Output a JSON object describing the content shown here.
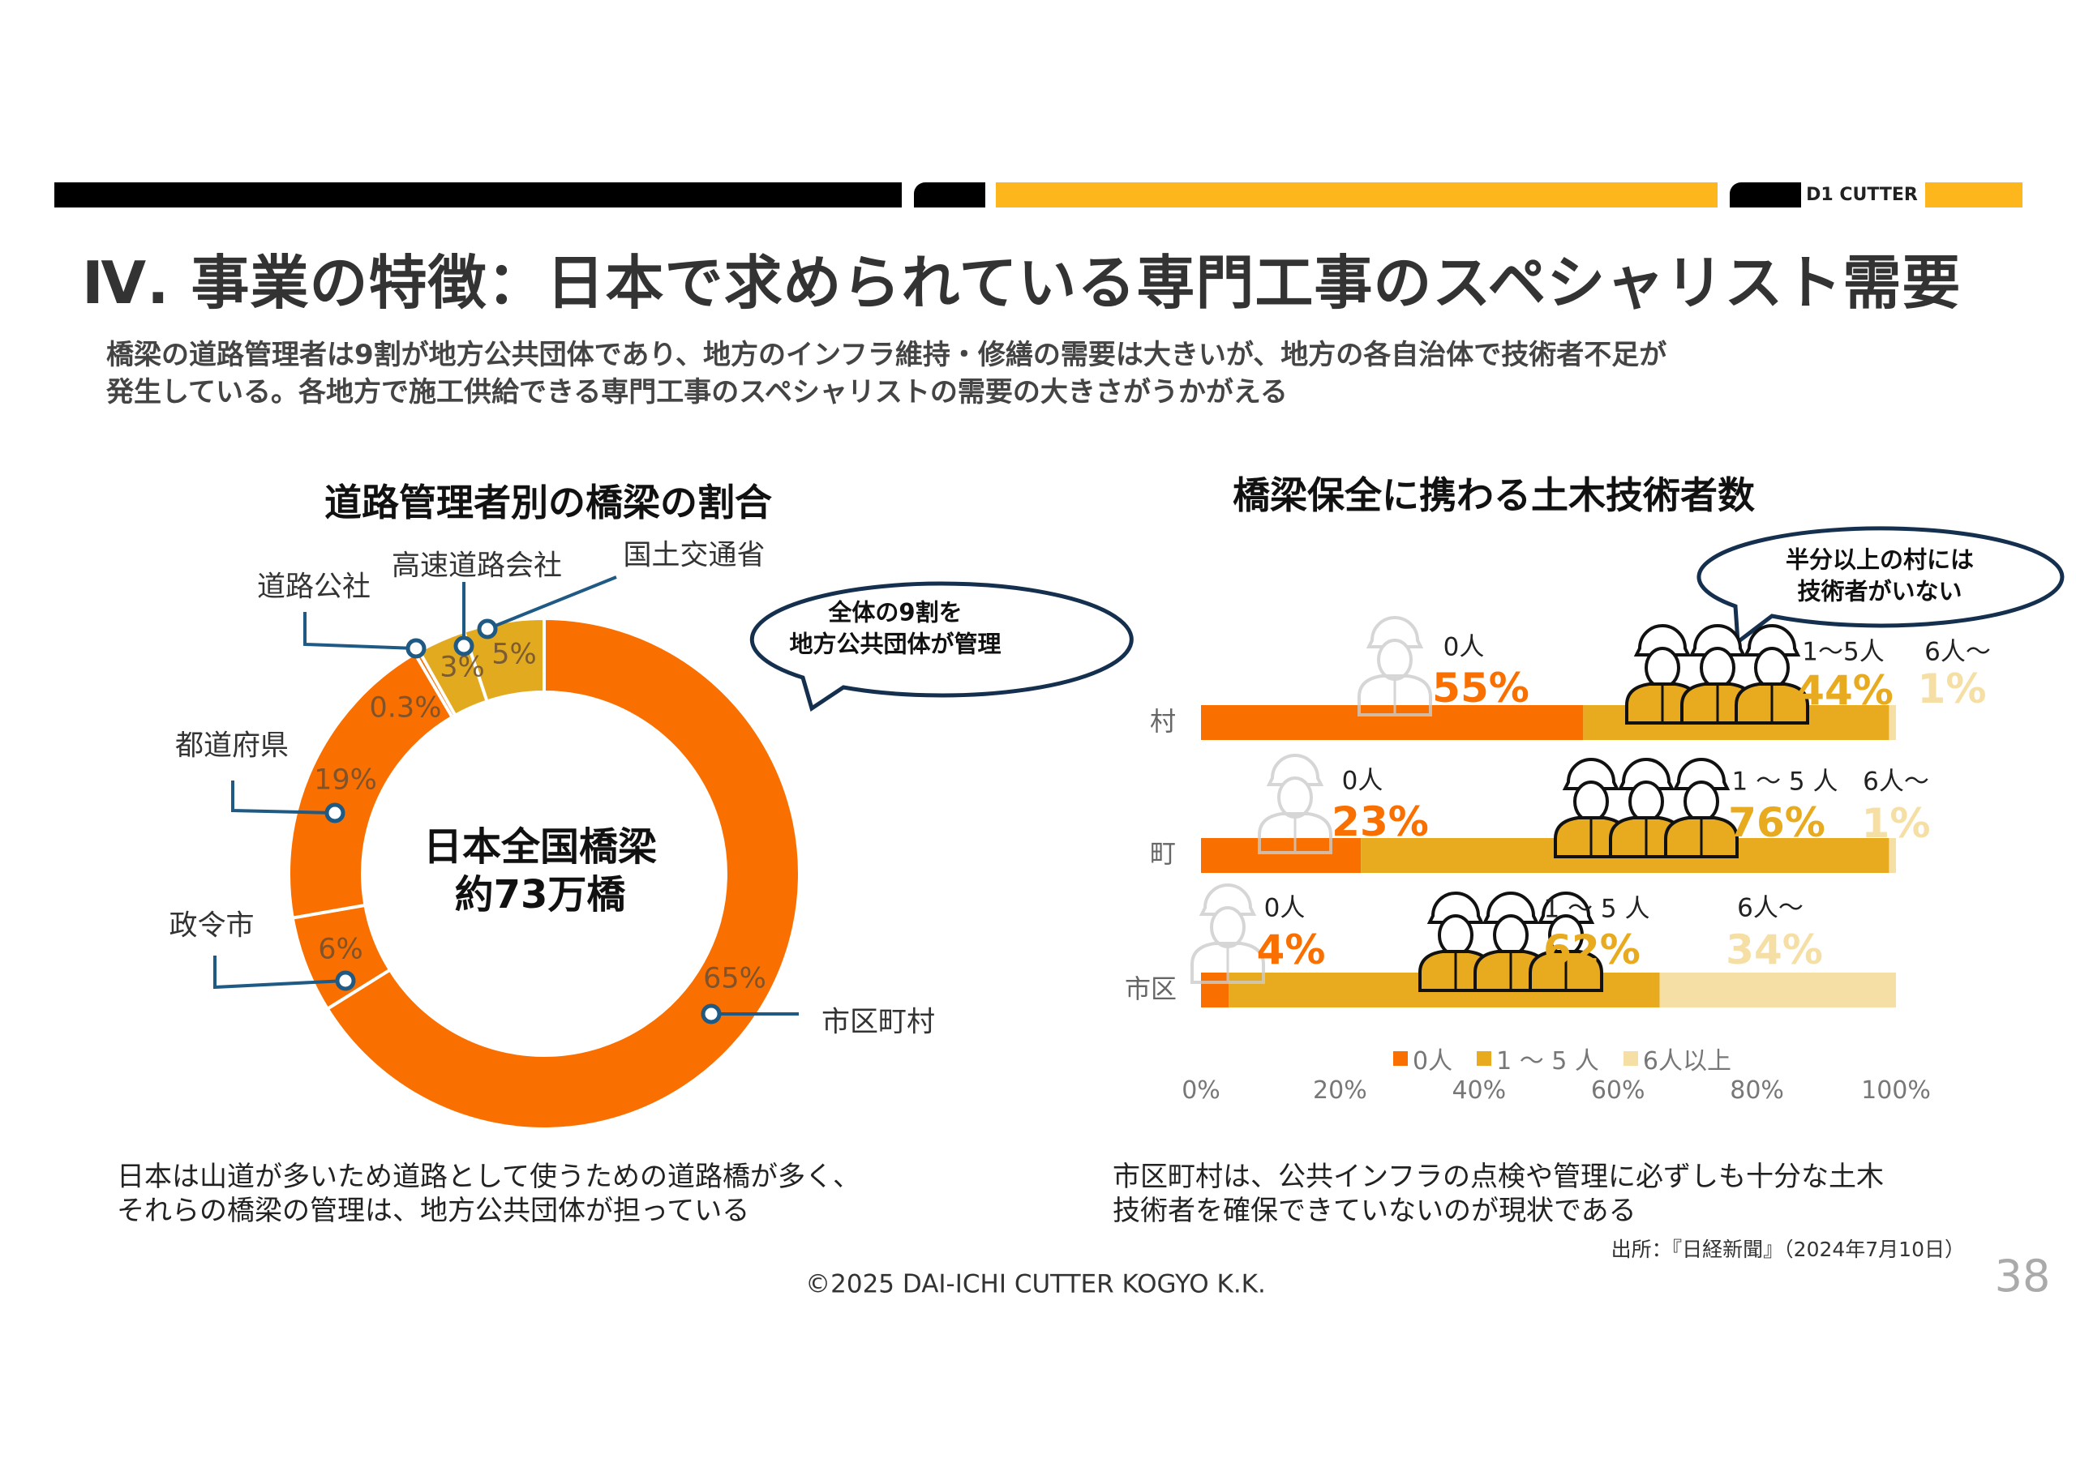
{
  "header": {
    "brand": "D1 CUTTER",
    "colors": {
      "black": "#000000",
      "yellow": "#FDB71C"
    }
  },
  "title": "Ⅳ. 事業の特徴：日本で求められている専門工事のスペシャリスト需要",
  "subtitle": [
    "橋梁の道路管理者は9割が地方公共団体であり、地方のインフラ維持・修繕の需要は大きいが、地方の各自治体で技術者不足が",
    "発生している。各地方で施工供給できる専門工事のスペシャリストの需要の大きさがうかがえる"
  ],
  "chart_data": [
    {
      "type": "pie",
      "donut": true,
      "title": "道路管理者別の橋梁の割合",
      "center_text": [
        "日本全国橋梁",
        "約73万橋"
      ],
      "slices": [
        {
          "name": "市区町村",
          "value": 65,
          "label": "65%",
          "color": "#F97000"
        },
        {
          "name": "政令市",
          "value": 6,
          "label": "6%",
          "color": "#F97000"
        },
        {
          "name": "都道府県",
          "value": 19,
          "label": "19%",
          "color": "#F97000"
        },
        {
          "name": "道路公社",
          "value": 0.3,
          "label": "0.3%",
          "color": "#F97000"
        },
        {
          "name": "高速道路会社",
          "value": 3,
          "label": "3%",
          "color": "#E2AA1F"
        },
        {
          "name": "国土交通省",
          "value": 5,
          "label": "5%",
          "color": "#E2AA1F"
        }
      ],
      "callout": [
        "全体の9割を",
        "地方公共団体が管理"
      ]
    },
    {
      "type": "bar",
      "stacked": true,
      "orientation": "horizontal",
      "title": "橋梁保全に携わる土木技術者数",
      "categories": [
        "村",
        "町",
        "市区"
      ],
      "series": [
        {
          "name": "0人",
          "values": [
            55,
            23,
            4
          ],
          "color": "#F97000"
        },
        {
          "name": "1～5人",
          "values": [
            44,
            76,
            62
          ],
          "color": "#E8AB1F"
        },
        {
          "name": "6人以上",
          "values": [
            1,
            1,
            34
          ],
          "color": "#F5DFA5"
        }
      ],
      "segment_labels": {
        "zero": "0人",
        "few": [
          "1～5人",
          "1 ～ 5 人",
          "1 ～ 5 人"
        ],
        "many": "6人～"
      },
      "legend": [
        "0人",
        "1 ～ 5 人",
        "6人以上"
      ],
      "xticks": [
        "0%",
        "20%",
        "40%",
        "60%",
        "80%",
        "100%"
      ],
      "xlim": [
        0,
        100
      ],
      "callout": [
        "半分以上の村には",
        "技術者がいない"
      ]
    }
  ],
  "notes": {
    "left": [
      "日本は山道が多いため道路として使うための道路橋が多く、",
      "それらの橋梁の管理は、地方公共団体が担っている"
    ],
    "right": [
      "市区町村は、公共インフラの点検や管理に必ずしも十分な土木",
      "技術者を確保できていないのが現状である"
    ],
    "source": "出所：『日経新聞』（2024年7月10日）"
  },
  "footer": {
    "copyright": "©2025 DAI-ICHI CUTTER KOGYO K.K.",
    "page": "38"
  }
}
